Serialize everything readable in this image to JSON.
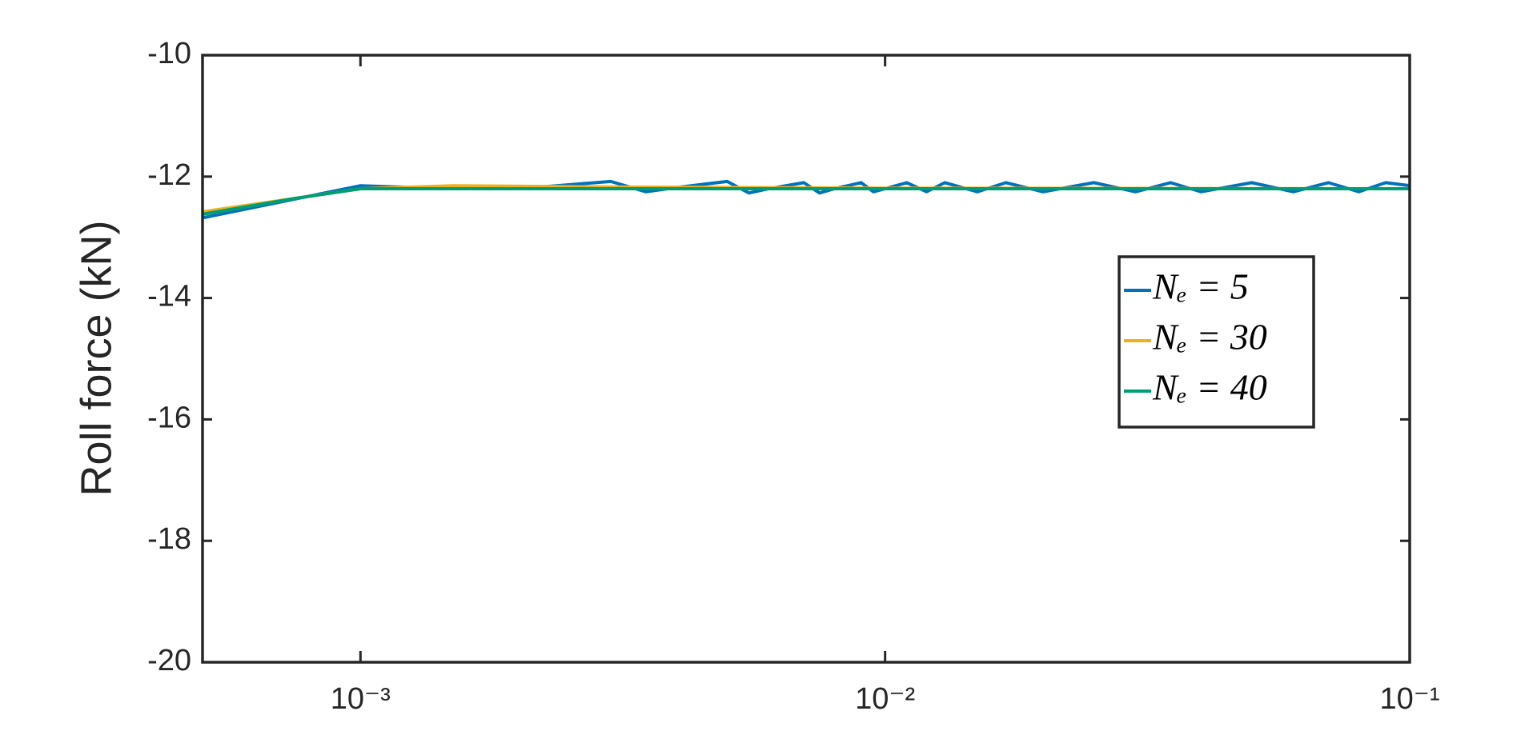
{
  "chart_data": {
    "type": "line",
    "ylabel": "Roll force (kN)",
    "xscale": "log",
    "xlim": [
      0.0005,
      0.1
    ],
    "xticks": [
      {
        "value": 0.001,
        "label": "10⁻³"
      },
      {
        "value": 0.01,
        "label": "10⁻²"
      },
      {
        "value": 0.1,
        "label": "10⁻¹"
      }
    ],
    "ylim": [
      -20,
      -10
    ],
    "yticks": [
      -20,
      -18,
      -16,
      -14,
      -12,
      -10
    ],
    "legend": "right",
    "series": [
      {
        "name": "Nₑ = 5",
        "color": "#0072bd",
        "x": [
          0.0005,
          0.001,
          0.0015,
          0.002,
          0.003,
          0.0035,
          0.004,
          0.005,
          0.0055,
          0.006,
          0.007,
          0.0075,
          0.008,
          0.009,
          0.0095,
          0.01,
          0.011,
          0.012,
          0.013,
          0.015,
          0.017,
          0.02,
          0.025,
          0.03,
          0.035,
          0.04,
          0.05,
          0.06,
          0.07,
          0.08,
          0.09,
          0.1
        ],
        "values": [
          -12.68,
          -12.15,
          -12.2,
          -12.2,
          -12.08,
          -12.25,
          -12.18,
          -12.08,
          -12.27,
          -12.2,
          -12.1,
          -12.27,
          -12.2,
          -12.1,
          -12.25,
          -12.2,
          -12.1,
          -12.25,
          -12.1,
          -12.25,
          -12.1,
          -12.25,
          -12.1,
          -12.25,
          -12.1,
          -12.25,
          -12.1,
          -12.25,
          -12.1,
          -12.25,
          -12.1,
          -12.15
        ]
      },
      {
        "name": "Nₑ = 30",
        "color": "#edb120",
        "x": [
          0.0005,
          0.001,
          0.0015,
          0.003,
          0.01,
          0.1
        ],
        "values": [
          -12.58,
          -12.2,
          -12.15,
          -12.17,
          -12.19,
          -12.2
        ]
      },
      {
        "name": "Nₑ = 40",
        "color": "#009e73",
        "x": [
          0.0005,
          0.00075,
          0.001,
          0.01,
          0.1
        ],
        "values": [
          -12.62,
          -12.36,
          -12.2,
          -12.2,
          -12.2
        ]
      }
    ]
  }
}
